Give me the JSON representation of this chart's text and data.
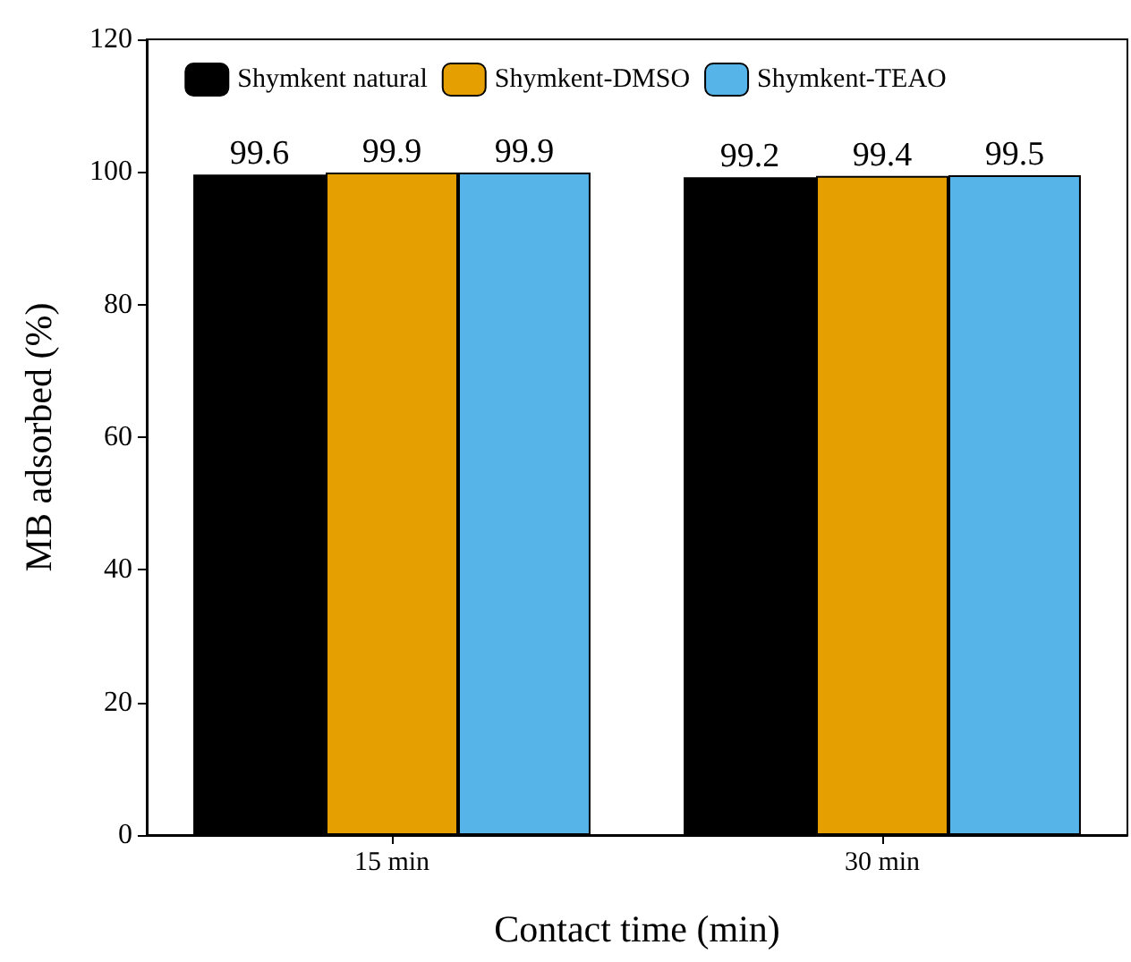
{
  "chart_data": {
    "type": "bar",
    "xlabel": "Contact time (min)",
    "ylabel": "MB adsorbed (%)",
    "categories": [
      "15 min",
      "30 min"
    ],
    "series": [
      {
        "name": "Shymkent natural",
        "color": "#000000",
        "values": [
          99.6,
          99.2
        ]
      },
      {
        "name": "Shymkent-DMSO",
        "color": "#e69f00",
        "values": [
          99.9,
          99.4
        ]
      },
      {
        "name": "Shymkent-TEAO",
        "color": "#56b4e9",
        "values": [
          99.9,
          99.5
        ]
      }
    ],
    "ylim": [
      0,
      120
    ],
    "yticks": [
      0,
      20,
      40,
      60,
      80,
      100,
      120
    ],
    "grid": false,
    "legend": "top",
    "data_labels": true
  }
}
